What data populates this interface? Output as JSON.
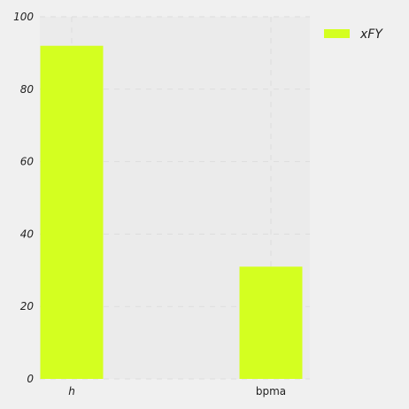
{
  "chart_data": {
    "type": "bar",
    "categories": [
      "h",
      "bpma"
    ],
    "series": [
      {
        "name": "xFY",
        "values": [
          92,
          31
        ],
        "color": "#d4ff20"
      }
    ],
    "ylim": [
      0,
      100
    ],
    "yticks": [
      "0",
      "20",
      "40",
      "60",
      "80",
      "100"
    ],
    "grid": true,
    "legend_position": "top-right",
    "background": "#f0f0f0",
    "plot_background": "#ebebeb"
  }
}
